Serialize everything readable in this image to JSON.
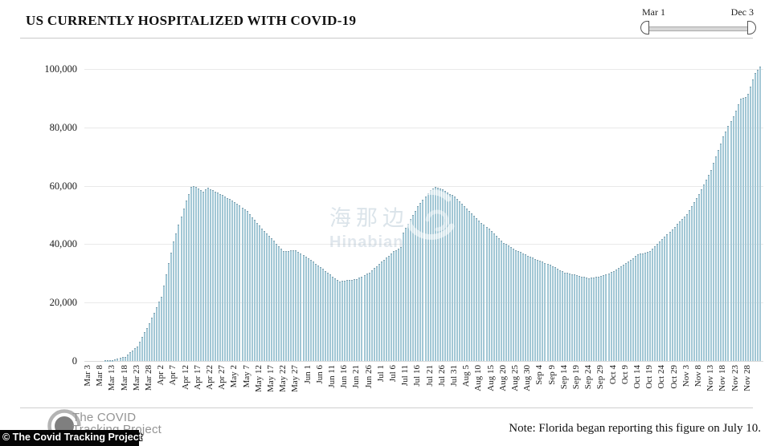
{
  "title": "US CURRENTLY HOSPITALIZED WITH COVID-19",
  "range_slider": {
    "start_label": "Mar 1",
    "end_label": "Dec 3"
  },
  "watermark": {
    "cjk": "海那边",
    "latin": "Hinabian"
  },
  "footer": {
    "logo_line1": "The COVID",
    "logo_line2": "Tracking Project",
    "copyright": "© The Covid Tracking Project",
    "note": "Note: Florida began reporting this figure on July 10."
  },
  "chart_data": {
    "type": "bar",
    "title": "US CURRENTLY HOSPITALIZED WITH COVID-19",
    "xlabel": "",
    "ylabel": "",
    "ylim": [
      0,
      100000
    ],
    "grid": "horizontal",
    "legend": "none",
    "bar_color": "#a2c7d5",
    "bar_cap_color": "#608090",
    "start_date": "Mar 3",
    "end_date": "Dec 3",
    "num_daily_bars": 276,
    "y_ticks": [
      {
        "label": "0",
        "value": 0
      },
      {
        "label": "20,000",
        "value": 20000
      },
      {
        "label": "40,000",
        "value": 40000
      },
      {
        "label": "60,000",
        "value": 60000
      },
      {
        "label": "80,000",
        "value": 80000
      },
      {
        "label": "100,000",
        "value": 100000
      }
    ],
    "x_tick_day_step": 5,
    "x_tick_labels": [
      "Mar 3",
      "Mar 8",
      "Mar 13",
      "Mar 18",
      "Mar 23",
      "Mar 28",
      "Apr 2",
      "Apr 7",
      "Apr 12",
      "Apr 17",
      "Apr 22",
      "Apr 27",
      "May 2",
      "May 7",
      "May 12",
      "May 17",
      "May 22",
      "May 27",
      "Jun 1",
      "Jun 6",
      "Jun 11",
      "Jun 16",
      "Jun 21",
      "Jun 26",
      "Jul 1",
      "Jul 6",
      "Jul 11",
      "Jul 16",
      "Jul 21",
      "Jul 26",
      "Jul 31",
      "Aug 5",
      "Aug 10",
      "Aug 15",
      "Aug 20",
      "Aug 25",
      "Aug 30",
      "Sep 4",
      "Sep 9",
      "Sep 14",
      "Sep 19",
      "Sep 24",
      "Sep 29",
      "Oct 4",
      "Oct 9",
      "Oct 14",
      "Oct 19",
      "Oct 24",
      "Oct 29",
      "Nov 3",
      "Nov 8",
      "Nov 13",
      "Nov 18",
      "Nov 23",
      "Nov 28"
    ],
    "series_note": "daily bars; values read from chart at anchor dates, days between anchors are linear interpolations",
    "anchors": [
      {
        "date": "Mar 3",
        "day": 0,
        "value": 0
      },
      {
        "date": "Mar 8",
        "day": 5,
        "value": 50
      },
      {
        "date": "Mar 13",
        "day": 10,
        "value": 300
      },
      {
        "date": "Mar 18",
        "day": 15,
        "value": 1500
      },
      {
        "date": "Mar 23",
        "day": 20,
        "value": 5000
      },
      {
        "date": "Mar 28",
        "day": 25,
        "value": 13000
      },
      {
        "date": "Apr 2",
        "day": 30,
        "value": 22000
      },
      {
        "date": "Apr 7",
        "day": 35,
        "value": 41000
      },
      {
        "date": "Apr 12",
        "day": 40,
        "value": 55000
      },
      {
        "date": "Apr 14",
        "day": 42,
        "value": 59500
      },
      {
        "date": "Apr 15",
        "day": 43,
        "value": 59900
      },
      {
        "date": "Apr 17",
        "day": 45,
        "value": 59200
      },
      {
        "date": "Apr 19",
        "day": 47,
        "value": 58100
      },
      {
        "date": "Apr 21",
        "day": 49,
        "value": 59300
      },
      {
        "date": "Apr 22",
        "day": 50,
        "value": 58800
      },
      {
        "date": "Apr 27",
        "day": 55,
        "value": 56800
      },
      {
        "date": "May 2",
        "day": 60,
        "value": 54400
      },
      {
        "date": "May 7",
        "day": 65,
        "value": 51300
      },
      {
        "date": "May 12",
        "day": 70,
        "value": 46300
      },
      {
        "date": "May 17",
        "day": 75,
        "value": 42000
      },
      {
        "date": "May 22",
        "day": 80,
        "value": 37500
      },
      {
        "date": "May 27",
        "day": 85,
        "value": 38000
      },
      {
        "date": "Jun 1",
        "day": 90,
        "value": 35200
      },
      {
        "date": "Jun 6",
        "day": 95,
        "value": 32100
      },
      {
        "date": "Jun 11",
        "day": 100,
        "value": 28900
      },
      {
        "date": "Jun 14",
        "day": 103,
        "value": 27300
      },
      {
        "date": "Jun 16",
        "day": 105,
        "value": 27500
      },
      {
        "date": "Jun 21",
        "day": 110,
        "value": 28100
      },
      {
        "date": "Jun 26",
        "day": 115,
        "value": 30300
      },
      {
        "date": "Jul 1",
        "day": 120,
        "value": 34000
      },
      {
        "date": "Jul 6",
        "day": 125,
        "value": 37500
      },
      {
        "date": "Jul 9",
        "day": 128,
        "value": 39000
      },
      {
        "date": "Jul 10",
        "day": 129,
        "value": 44000
      },
      {
        "date": "Jul 11",
        "day": 130,
        "value": 45500
      },
      {
        "date": "Jul 16",
        "day": 135,
        "value": 53000
      },
      {
        "date": "Jul 21",
        "day": 140,
        "value": 58500
      },
      {
        "date": "Jul 23",
        "day": 142,
        "value": 59700
      },
      {
        "date": "Jul 26",
        "day": 145,
        "value": 58900
      },
      {
        "date": "Jul 31",
        "day": 150,
        "value": 56200
      },
      {
        "date": "Aug 5",
        "day": 155,
        "value": 52100
      },
      {
        "date": "Aug 10",
        "day": 160,
        "value": 48100
      },
      {
        "date": "Aug 15",
        "day": 165,
        "value": 44500
      },
      {
        "date": "Aug 20",
        "day": 170,
        "value": 40500
      },
      {
        "date": "Aug 25",
        "day": 175,
        "value": 38000
      },
      {
        "date": "Aug 30",
        "day": 180,
        "value": 36100
      },
      {
        "date": "Sep 4",
        "day": 185,
        "value": 34300
      },
      {
        "date": "Sep 9",
        "day": 190,
        "value": 32500
      },
      {
        "date": "Sep 14",
        "day": 195,
        "value": 30300
      },
      {
        "date": "Sep 19",
        "day": 200,
        "value": 29400
      },
      {
        "date": "Sep 24",
        "day": 205,
        "value": 28300
      },
      {
        "date": "Sep 29",
        "day": 210,
        "value": 29000
      },
      {
        "date": "Oct 4",
        "day": 215,
        "value": 30800
      },
      {
        "date": "Oct 9",
        "day": 220,
        "value": 33400
      },
      {
        "date": "Oct 14",
        "day": 225,
        "value": 36500
      },
      {
        "date": "Oct 19",
        "day": 230,
        "value": 37500
      },
      {
        "date": "Oct 24",
        "day": 235,
        "value": 41800
      },
      {
        "date": "Oct 29",
        "day": 240,
        "value": 46000
      },
      {
        "date": "Nov 3",
        "day": 245,
        "value": 50300
      },
      {
        "date": "Nov 8",
        "day": 250,
        "value": 57200
      },
      {
        "date": "Nov 13",
        "day": 255,
        "value": 65500
      },
      {
        "date": "Nov 18",
        "day": 260,
        "value": 76800
      },
      {
        "date": "Nov 23",
        "day": 265,
        "value": 85700
      },
      {
        "date": "Nov 25",
        "day": 267,
        "value": 89900
      },
      {
        "date": "Nov 27",
        "day": 269,
        "value": 90500
      },
      {
        "date": "Nov 28",
        "day": 270,
        "value": 91600
      },
      {
        "date": "Dec 1",
        "day": 273,
        "value": 98700
      },
      {
        "date": "Dec 3",
        "day": 275,
        "value": 100800
      }
    ]
  }
}
